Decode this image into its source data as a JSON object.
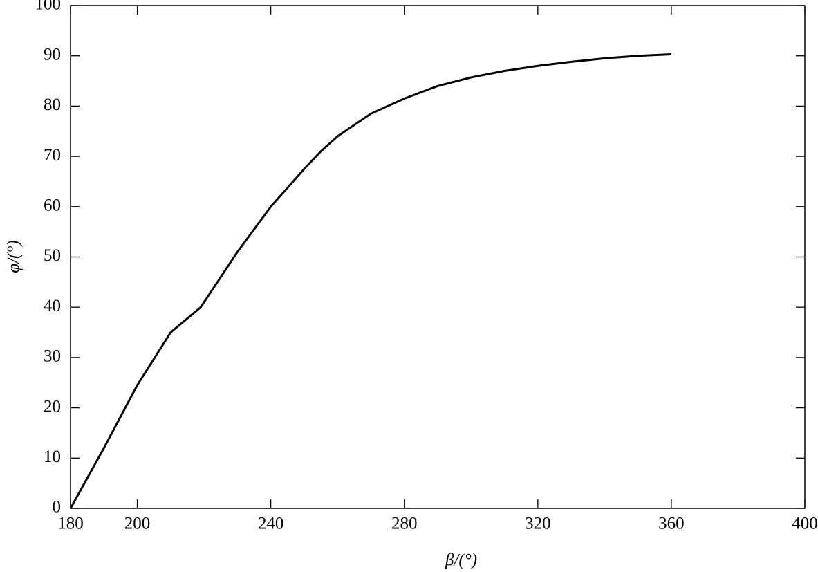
{
  "chart_data": {
    "type": "line",
    "xlabel": "β/(°)",
    "ylabel": "φ/(°)",
    "x": [
      180,
      190,
      200,
      210,
      219,
      230,
      240,
      250,
      255,
      260,
      270,
      280,
      290,
      300,
      310,
      320,
      330,
      340,
      350,
      360
    ],
    "series": [
      {
        "color": "#000000",
        "values": [
          0,
          12,
          24.5,
          35,
          40,
          51,
          60,
          67.5,
          71,
          74,
          78.5,
          81.5,
          84,
          85.7,
          87,
          88,
          88.8,
          89.5,
          90,
          90.3
        ]
      }
    ],
    "xlim": [
      180,
      400
    ],
    "xticks": [
      180,
      200,
      240,
      280,
      320,
      360,
      400
    ],
    "ylim": [
      0,
      100
    ],
    "yticks": [
      0,
      10,
      20,
      30,
      40,
      50,
      60,
      70,
      80,
      90,
      100
    ]
  }
}
